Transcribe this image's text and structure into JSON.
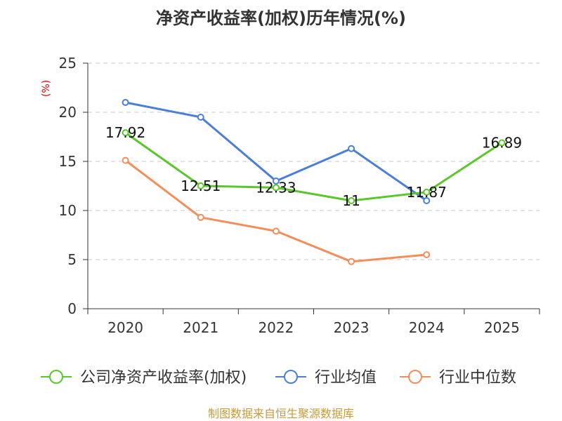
{
  "chart_data": {
    "type": "line",
    "title": "净资产收益率(加权)历年情况(%)",
    "ylabel": "(%)",
    "xlabel": "",
    "categories": [
      "2020",
      "2021",
      "2022",
      "2023",
      "2024",
      "2025"
    ],
    "ylim": [
      0,
      25
    ],
    "yticks": [
      0,
      5,
      10,
      15,
      20,
      25
    ],
    "grid": true,
    "legend_position": "bottom",
    "series": [
      {
        "name": "公司净资产收益率(加权)",
        "color": "#5ac72b",
        "values": [
          17.92,
          12.51,
          12.33,
          11,
          11.87,
          16.89
        ],
        "labels": [
          "17.92",
          "12.51",
          "12.33",
          "11",
          "11.87",
          "16.89"
        ]
      },
      {
        "name": "行业均值",
        "color": "#4a7fd8",
        "values": [
          21.0,
          19.5,
          13.0,
          16.3,
          11.0,
          null
        ]
      },
      {
        "name": "行业中位数",
        "color": "#f58d5a",
        "values": [
          15.1,
          9.3,
          7.9,
          4.8,
          5.5,
          null
        ]
      }
    ]
  },
  "footer": {
    "source": "制图数据来自恒生聚源数据库"
  }
}
